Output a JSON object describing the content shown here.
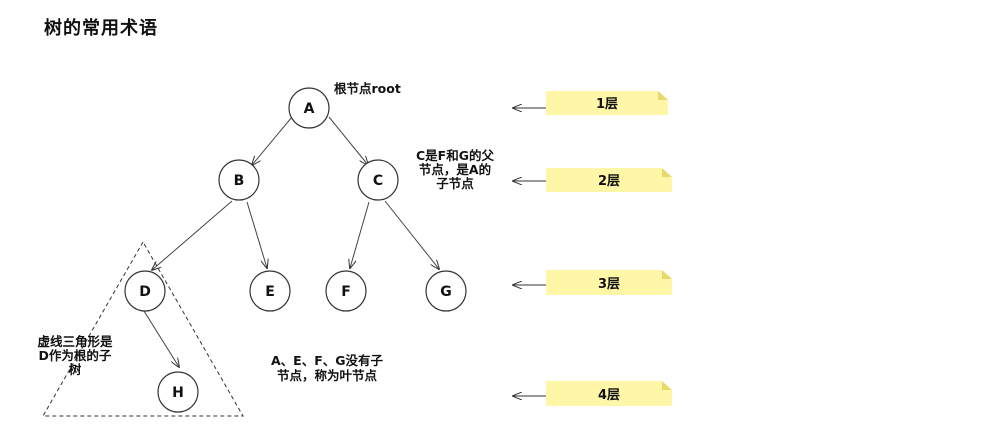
{
  "title": "树的常用术语",
  "nodes": {
    "A": "A",
    "B": "B",
    "C": "C",
    "D": "D",
    "E": "E",
    "F": "F",
    "G": "G",
    "H": "H"
  },
  "annotations": {
    "root": "根节点root",
    "parent_line1": "C是F和G的父",
    "parent_line2": "节点，是A的",
    "parent_line3": "子节点",
    "leaf_line1": "A、E、F、G没有子",
    "leaf_line2": "节点，称为叶节点",
    "subtree_line1": "虚线三角形是",
    "subtree_line2": "D作为根的子",
    "subtree_line3": "树"
  },
  "levels": [
    "1层",
    "2层",
    "3层",
    "4层"
  ],
  "colors": {
    "note_fill": "#fff6a8",
    "note_fold": "#e8d96a"
  }
}
